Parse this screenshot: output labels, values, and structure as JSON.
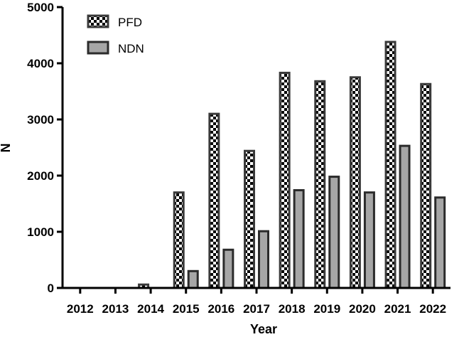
{
  "chart_data": {
    "type": "bar",
    "title": "",
    "xlabel": "Year",
    "ylabel": "N",
    "ylim": [
      0,
      5000
    ],
    "yticks": [
      "0",
      "1000",
      "2000",
      "3000",
      "4000",
      "5000"
    ],
    "categories": [
      "2012",
      "2013",
      "2014",
      "2015",
      "2016",
      "2017",
      "2018",
      "2019",
      "2020",
      "2021",
      "2022"
    ],
    "series": [
      {
        "name": "PFD",
        "style": "checker",
        "color": "#000000",
        "fill_alt": "#ffffff",
        "outline": "#3a3a3a",
        "values": [
          0,
          0,
          60,
          1700,
          3100,
          2440,
          3830,
          3680,
          3750,
          4380,
          3630
        ]
      },
      {
        "name": "NDN",
        "style": "solid",
        "color": "#a6a6a6",
        "outline": "#2b2b2b",
        "values": [
          0,
          0,
          0,
          300,
          680,
          1010,
          1740,
          1980,
          1700,
          2530,
          1610
        ]
      }
    ],
    "legend": "top-left",
    "grid": false
  }
}
